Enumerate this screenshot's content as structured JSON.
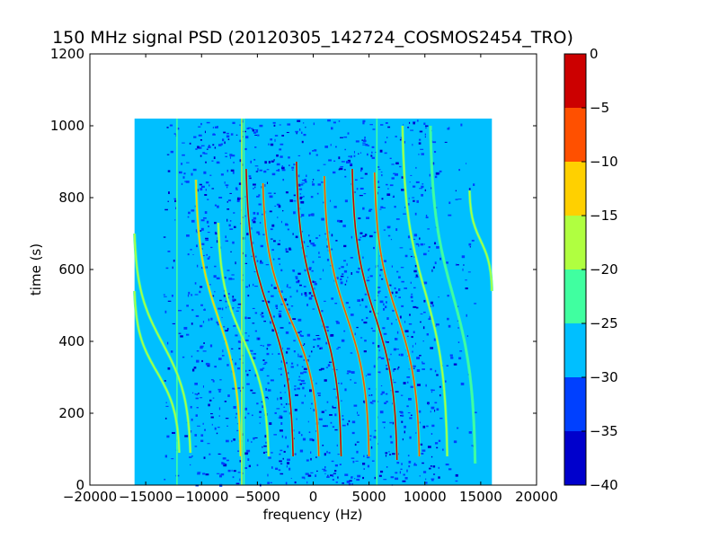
{
  "chart_data": {
    "type": "heatmap",
    "title": "150 MHz signal PSD (20120305_142724_COSMOS2454_TRO)",
    "xlabel": "frequency (Hz)",
    "ylabel": "time (s)",
    "xlim": [
      -20000,
      20000
    ],
    "ylim": [
      0,
      1200
    ],
    "x_ticks": [
      -20000,
      -15000,
      -10000,
      -5000,
      0,
      5000,
      10000,
      15000,
      20000
    ],
    "x_tick_labels": [
      "−20000",
      "−15000",
      "−10000",
      "−5000",
      "0",
      "5000",
      "10000",
      "15000",
      "20000"
    ],
    "y_ticks": [
      0,
      200,
      400,
      600,
      800,
      1000,
      1200
    ],
    "y_tick_labels": [
      "0",
      "200",
      "400",
      "600",
      "800",
      "1000",
      "1200"
    ],
    "data_extent": {
      "x": [
        -16000,
        16000
      ],
      "y": [
        0,
        1020
      ]
    },
    "background_level": -27.5,
    "colorbar": {
      "ticks": [
        0,
        -5,
        -10,
        -15,
        -20,
        -25,
        -30,
        -35,
        -40
      ],
      "tick_labels": [
        "0",
        "−5",
        "−10",
        "−15",
        "−20",
        "−25",
        "−30",
        "−35",
        "−40"
      ],
      "range": [
        -40,
        0
      ],
      "colors": [
        "#0000cc",
        "#0040ff",
        "#00bfff",
        "#40ffa0",
        "#b0ff40",
        "#ffd000",
        "#ff5000",
        "#cc0000"
      ]
    },
    "vertical_lines": [
      {
        "x": -12200,
        "level": -22
      },
      {
        "x": -6400,
        "level": -18
      },
      {
        "x": -6200,
        "level": -22
      },
      {
        "x": 5700,
        "level": -23
      }
    ],
    "traces": [
      {
        "x_end": -16000,
        "x_start": -12000,
        "t_start": 540,
        "t_end": 90,
        "intensity": -17
      },
      {
        "x_end": -16000,
        "x_start": -11000,
        "t_start": 700,
        "t_end": 90,
        "intensity": -20
      },
      {
        "x_end": -10500,
        "x_start": -6500,
        "t_start": 850,
        "t_end": 80,
        "intensity": -15
      },
      {
        "x_end": -8500,
        "x_start": -4000,
        "t_start": 730,
        "t_end": 80,
        "intensity": -20
      },
      {
        "x_end": -6000,
        "x_start": -1800,
        "t_start": 880,
        "t_end": 80,
        "intensity": -5
      },
      {
        "x_end": -4500,
        "x_start": 500,
        "t_start": 840,
        "t_end": 80,
        "intensity": -10
      },
      {
        "x_end": -1500,
        "x_start": 2500,
        "t_start": 900,
        "t_end": 80,
        "intensity": -5
      },
      {
        "x_end": 1000,
        "x_start": 5000,
        "t_start": 860,
        "t_end": 80,
        "intensity": -7
      },
      {
        "x_end": 3500,
        "x_start": 7500,
        "t_start": 880,
        "t_end": 70,
        "intensity": -5
      },
      {
        "x_end": 5500,
        "x_start": 9500,
        "t_start": 870,
        "t_end": 80,
        "intensity": -10
      },
      {
        "x_end": 8000,
        "x_start": 12000,
        "t_start": 1000,
        "t_end": 80,
        "intensity": -20
      },
      {
        "x_end": 10500,
        "x_start": 14500,
        "t_start": 1000,
        "t_end": 60,
        "intensity": -22
      },
      {
        "x_end": 14000,
        "x_start": 16000,
        "t_start": 820,
        "t_end": 540,
        "intensity": -17
      }
    ]
  }
}
